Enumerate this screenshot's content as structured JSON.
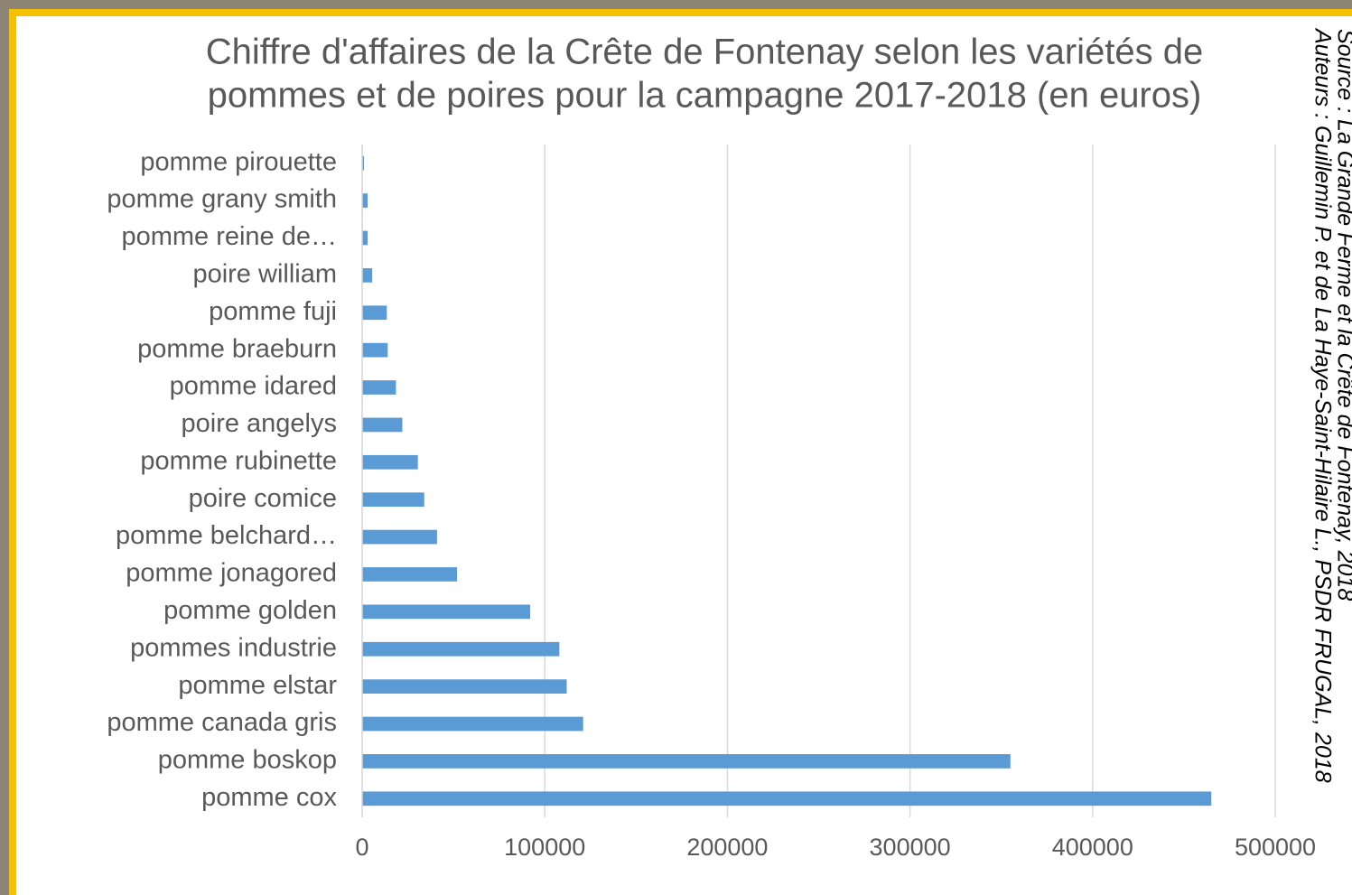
{
  "chart_data": {
    "type": "hbar",
    "title": [
      "Chiffre d'affaires de la Crête de Fontenay selon les variétés de",
      "pommes et de poires pour la campagne 2017-2018 (en euros)"
    ],
    "notes": [
      "Source : La Grande Ferme et la Crête de Fontenay, 2018",
      "Auteurs : Guillemin P. et de La Haye-Saint-Hilaire L., PSDR FRUGAL, 2018"
    ],
    "categories": [
      "pomme pirouette",
      "pomme grany smith",
      "pomme reine de…",
      "poire william",
      "pomme fuji",
      "pomme braeburn",
      "pomme idared",
      "poire angelys",
      "pomme rubinette",
      "poire comice",
      "pomme belchard…",
      "pomme jonagored",
      "pomme golden",
      "pommes industrie",
      "pomme elstar",
      "pomme canada gris",
      "pomme boskop",
      "pomme cox"
    ],
    "values": [
      1000,
      3000,
      3000,
      5500,
      13500,
      14000,
      18500,
      22000,
      30500,
      34000,
      41000,
      52000,
      92000,
      108000,
      112000,
      121000,
      355000,
      465000
    ],
    "color": "#5b9bd5",
    "xlim": [
      0,
      500000
    ],
    "xticks": [
      0,
      100000,
      200000,
      300000,
      400000,
      500000
    ],
    "grid": true
  }
}
